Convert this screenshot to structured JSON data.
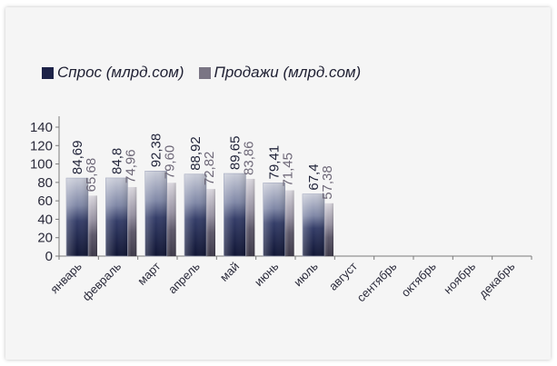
{
  "chart_data": {
    "type": "bar",
    "categories": [
      "январь",
      "февраль",
      "март",
      "апрель",
      "май",
      "июнь",
      "июль",
      "август",
      "сентябрь",
      "октябрь",
      "ноябрь",
      "декабрь"
    ],
    "series": [
      {
        "name": "Спрос (млрд.сом)",
        "values": [
          84.69,
          84.8,
          92.38,
          88.92,
          89.65,
          79.41,
          67.4,
          null,
          null,
          null,
          null,
          null
        ],
        "labels": [
          "84,69",
          "84,8",
          "92,38",
          "88,92",
          "89,65",
          "79,41",
          "67,4",
          "",
          "",
          "",
          "",
          ""
        ],
        "color": "#2a3157"
      },
      {
        "name": "Продажи (млрд.сом)",
        "values": [
          65.68,
          74.96,
          79.6,
          72.82,
          83.86,
          71.45,
          57.38,
          null,
          null,
          null,
          null,
          null
        ],
        "labels": [
          "65,68",
          "74,96",
          "79,60",
          "72,82",
          "83,86",
          "71,45",
          "57,38",
          "",
          "",
          "",
          "",
          ""
        ],
        "color": "#6e6a7c"
      }
    ],
    "yticks": [
      "0",
      "20",
      "40",
      "60",
      "80",
      "100",
      "120",
      "140"
    ],
    "ylim": [
      0,
      140
    ],
    "grid": false,
    "legend_position": "top-left"
  }
}
